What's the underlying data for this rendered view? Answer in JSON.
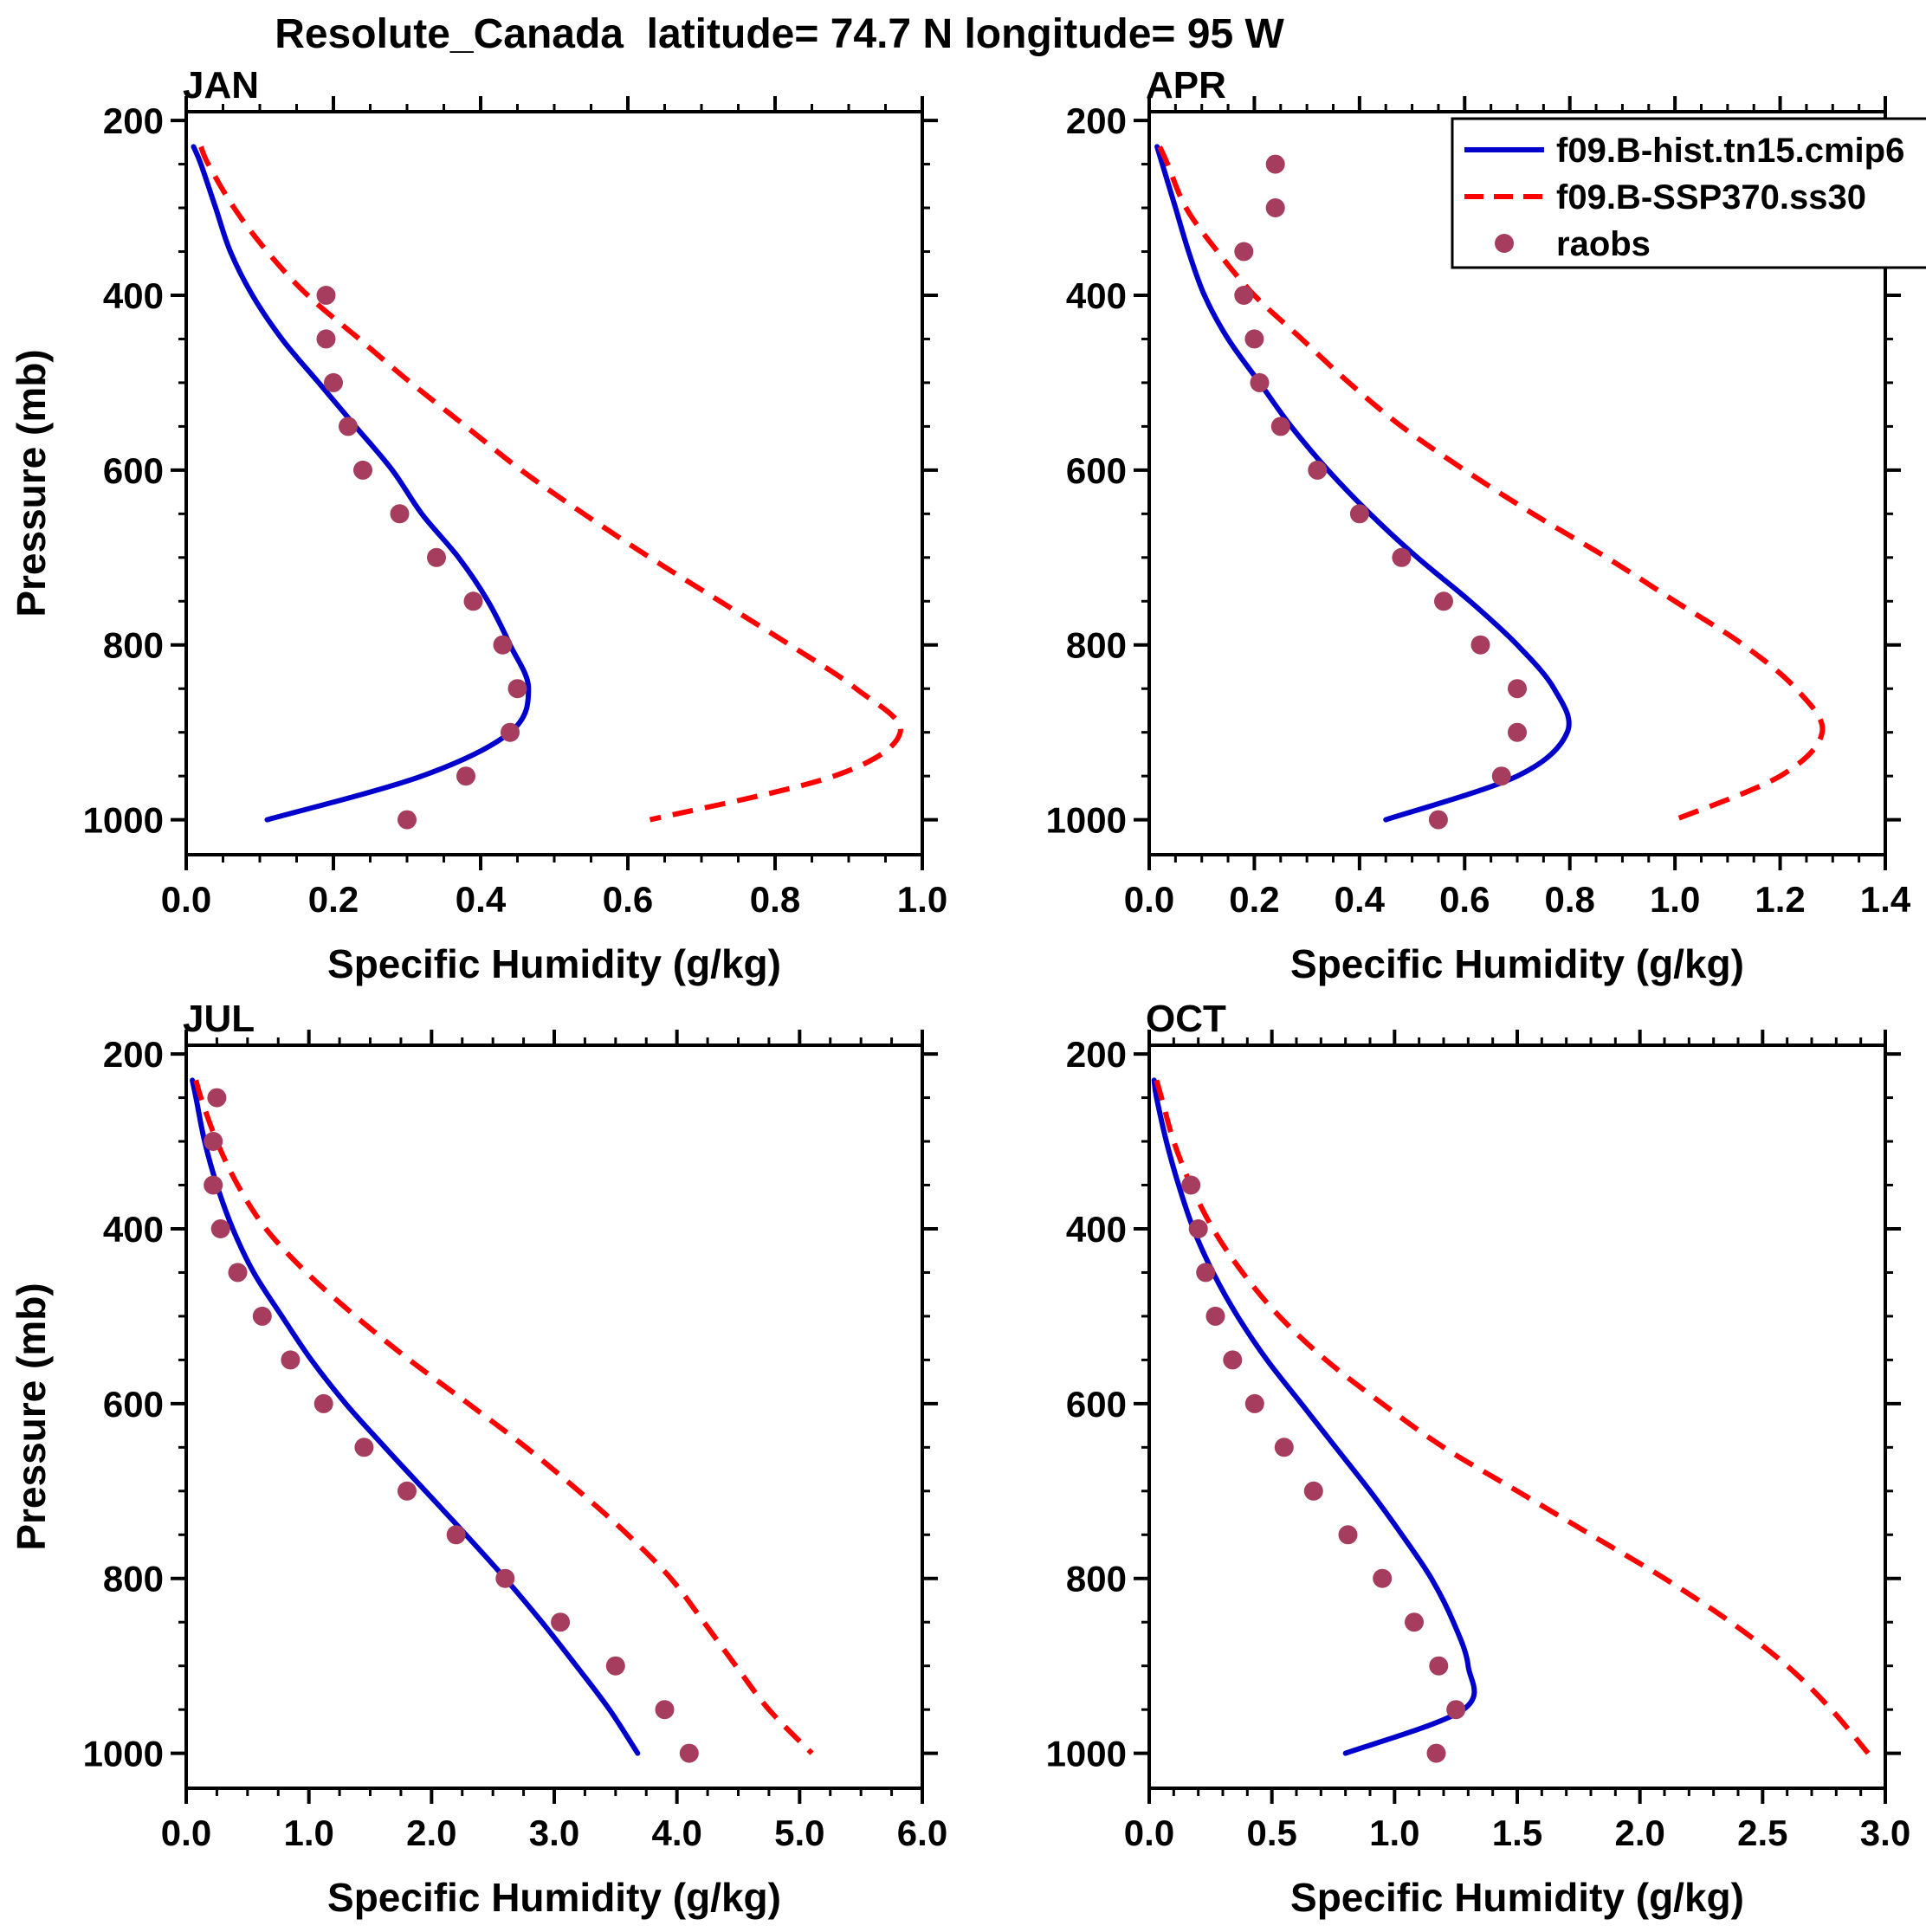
{
  "page_title": "Resolute_Canada  latitude= 74.7 N longitude= 95 W",
  "legend": {
    "position": "top-right-of-apr-panel",
    "items": [
      {
        "label": "f09.B-hist.tn15.cmip6",
        "style": "solid",
        "color": "#0000cd"
      },
      {
        "label": "f09.B-SSP370.ss30",
        "style": "dashed",
        "color": "#ff0000"
      },
      {
        "label": "raobs",
        "style": "dots",
        "color": "#a63d5e"
      }
    ]
  },
  "chart_data": [
    {
      "type": "line",
      "title": "JAN",
      "xlabel": "Specific Humidity (g/kg)",
      "ylabel": "Pressure (mb)",
      "xlim": [
        0.0,
        1.0
      ],
      "xtick_step": 0.2,
      "xminor_step": 0.05,
      "ylim": [
        190,
        1040
      ],
      "yticks": [
        200,
        400,
        600,
        800,
        1000
      ],
      "yminor_step": 50,
      "show_ylabel": true,
      "show_legend": false,
      "grid": false,
      "series": [
        {
          "name": "f09.B-hist.tn15.cmip6",
          "pressure": [
            230,
            250,
            300,
            350,
            400,
            450,
            500,
            550,
            600,
            650,
            700,
            750,
            800,
            850,
            900,
            950,
            1000
          ],
          "values": [
            0.01,
            0.02,
            0.04,
            0.06,
            0.09,
            0.13,
            0.18,
            0.23,
            0.28,
            0.32,
            0.37,
            0.41,
            0.44,
            0.465,
            0.44,
            0.32,
            0.11
          ]
        },
        {
          "name": "f09.B-SSP370.ss30",
          "pressure": [
            230,
            250,
            300,
            350,
            400,
            450,
            500,
            550,
            600,
            650,
            700,
            750,
            800,
            850,
            900,
            950,
            1000
          ],
          "values": [
            0.02,
            0.03,
            0.065,
            0.11,
            0.165,
            0.235,
            0.305,
            0.38,
            0.455,
            0.54,
            0.63,
            0.725,
            0.82,
            0.91,
            0.97,
            0.88,
            0.63
          ]
        },
        {
          "name": "raobs",
          "pressure": [
            400,
            450,
            500,
            550,
            600,
            650,
            700,
            750,
            800,
            850,
            900,
            950,
            1000
          ],
          "values": [
            0.19,
            0.19,
            0.2,
            0.22,
            0.24,
            0.29,
            0.34,
            0.39,
            0.43,
            0.45,
            0.44,
            0.38,
            0.3
          ]
        }
      ]
    },
    {
      "type": "line",
      "title": "APR",
      "xlabel": "Specific Humidity (g/kg)",
      "ylabel": "Pressure (mb)",
      "xlim": [
        0.0,
        1.4
      ],
      "xtick_step": 0.2,
      "xminor_step": 0.05,
      "ylim": [
        190,
        1040
      ],
      "yticks": [
        200,
        400,
        600,
        800,
        1000
      ],
      "yminor_step": 50,
      "show_ylabel": false,
      "show_legend": true,
      "grid": false,
      "series": [
        {
          "name": "f09.B-hist.tn15.cmip6",
          "pressure": [
            230,
            250,
            300,
            350,
            400,
            450,
            500,
            550,
            600,
            650,
            700,
            750,
            800,
            850,
            900,
            950,
            1000
          ],
          "values": [
            0.015,
            0.025,
            0.05,
            0.075,
            0.105,
            0.15,
            0.21,
            0.27,
            0.34,
            0.42,
            0.51,
            0.61,
            0.7,
            0.77,
            0.795,
            0.7,
            0.45
          ]
        },
        {
          "name": "f09.B-SSP370.ss30",
          "pressure": [
            230,
            250,
            300,
            350,
            400,
            450,
            500,
            550,
            600,
            650,
            700,
            750,
            800,
            850,
            900,
            950,
            1000
          ],
          "values": [
            0.02,
            0.035,
            0.07,
            0.13,
            0.2,
            0.29,
            0.38,
            0.48,
            0.6,
            0.73,
            0.87,
            1.0,
            1.13,
            1.23,
            1.28,
            1.2,
            1.0
          ]
        },
        {
          "name": "raobs",
          "pressure": [
            250,
            300,
            350,
            400,
            450,
            500,
            550,
            600,
            650,
            700,
            750,
            800,
            850,
            900,
            950,
            1000
          ],
          "values": [
            0.24,
            0.24,
            0.18,
            0.18,
            0.2,
            0.21,
            0.25,
            0.32,
            0.4,
            0.48,
            0.56,
            0.63,
            0.7,
            0.7,
            0.67,
            0.55
          ]
        }
      ]
    },
    {
      "type": "line",
      "title": "JUL",
      "xlabel": "Specific Humidity (g/kg)",
      "ylabel": "Pressure (mb)",
      "xlim": [
        0.0,
        6.0
      ],
      "xtick_step": 1.0,
      "xminor_step": 0.25,
      "ylim": [
        190,
        1040
      ],
      "yticks": [
        200,
        400,
        600,
        800,
        1000
      ],
      "yminor_step": 50,
      "show_ylabel": true,
      "show_legend": false,
      "grid": false,
      "series": [
        {
          "name": "f09.B-hist.tn15.cmip6",
          "pressure": [
            230,
            250,
            300,
            350,
            400,
            450,
            500,
            550,
            600,
            650,
            700,
            750,
            800,
            850,
            900,
            950,
            1000
          ],
          "values": [
            0.05,
            0.08,
            0.15,
            0.25,
            0.38,
            0.55,
            0.78,
            1.02,
            1.3,
            1.62,
            1.95,
            2.28,
            2.6,
            2.9,
            3.18,
            3.45,
            3.68
          ]
        },
        {
          "name": "f09.B-SSP370.ss30",
          "pressure": [
            230,
            250,
            300,
            350,
            400,
            450,
            500,
            550,
            600,
            650,
            700,
            750,
            800,
            850,
            900,
            950,
            1000
          ],
          "values": [
            0.08,
            0.12,
            0.25,
            0.42,
            0.65,
            0.98,
            1.38,
            1.82,
            2.3,
            2.77,
            3.2,
            3.6,
            3.95,
            4.22,
            4.48,
            4.75,
            5.1
          ]
        },
        {
          "name": "raobs",
          "pressure": [
            250,
            300,
            350,
            400,
            450,
            500,
            550,
            600,
            650,
            700,
            750,
            800,
            850,
            900,
            950,
            1000
          ],
          "values": [
            0.25,
            0.22,
            0.22,
            0.28,
            0.42,
            0.62,
            0.85,
            1.12,
            1.45,
            1.8,
            2.2,
            2.6,
            3.05,
            3.5,
            3.9,
            4.1
          ]
        }
      ]
    },
    {
      "type": "line",
      "title": "OCT",
      "xlabel": "Specific Humidity (g/kg)",
      "ylabel": "Pressure (mb)",
      "xlim": [
        0.0,
        3.0
      ],
      "xtick_step": 0.5,
      "xminor_step": 0.1,
      "ylim": [
        190,
        1040
      ],
      "yticks": [
        200,
        400,
        600,
        800,
        1000
      ],
      "yminor_step": 50,
      "show_ylabel": false,
      "show_legend": false,
      "grid": false,
      "series": [
        {
          "name": "f09.B-hist.tn15.cmip6",
          "pressure": [
            230,
            250,
            300,
            350,
            400,
            450,
            500,
            550,
            600,
            650,
            700,
            750,
            800,
            850,
            900,
            950,
            1000
          ],
          "values": [
            0.02,
            0.03,
            0.07,
            0.12,
            0.18,
            0.26,
            0.36,
            0.48,
            0.62,
            0.76,
            0.9,
            1.03,
            1.15,
            1.24,
            1.3,
            1.28,
            0.8
          ]
        },
        {
          "name": "f09.B-SSP370.ss30",
          "pressure": [
            230,
            250,
            300,
            350,
            400,
            450,
            500,
            550,
            600,
            650,
            700,
            750,
            800,
            850,
            900,
            950,
            1000
          ],
          "values": [
            0.03,
            0.05,
            0.1,
            0.17,
            0.26,
            0.38,
            0.53,
            0.72,
            0.95,
            1.2,
            1.5,
            1.8,
            2.1,
            2.37,
            2.6,
            2.78,
            2.93
          ]
        },
        {
          "name": "raobs",
          "pressure": [
            350,
            400,
            450,
            500,
            550,
            600,
            650,
            700,
            750,
            800,
            850,
            900,
            950,
            1000
          ],
          "values": [
            0.17,
            0.2,
            0.23,
            0.27,
            0.34,
            0.43,
            0.55,
            0.67,
            0.81,
            0.95,
            1.08,
            1.18,
            1.25,
            1.17
          ]
        }
      ]
    }
  ]
}
